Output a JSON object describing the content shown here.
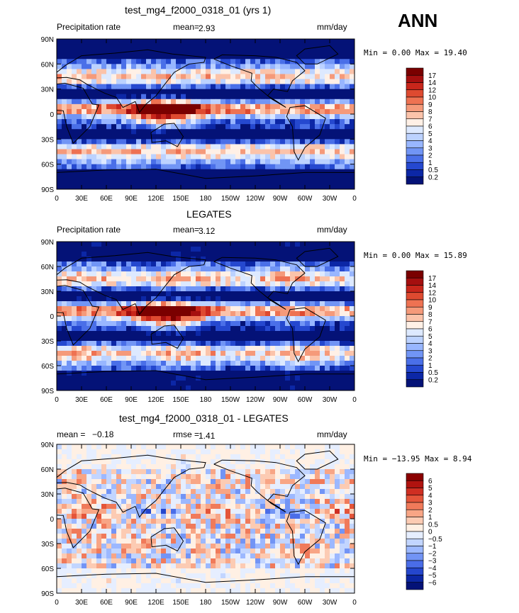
{
  "season": "ANN",
  "panels": [
    {
      "title": "test_mg4_f2000_0318_01 (yrs 1)",
      "left_label": "Precipitation rate",
      "stat_label": "mean=",
      "stat_value": "2.93",
      "stat2_label": "",
      "stat2_value": "",
      "units": "mm/day",
      "minmax": "Min =   0.00 Max =  19.40",
      "colorbar": {
        "labels": [
          "17",
          "14",
          "12",
          "10",
          "9",
          "8",
          "7",
          "6",
          "5",
          "4",
          "3",
          "2",
          "1",
          "0.5",
          "0.2"
        ],
        "colors": [
          "#7a0000",
          "#a50f0f",
          "#c8261b",
          "#de4a30",
          "#ee7252",
          "#f59a7a",
          "#fbc3aa",
          "#fff0e6",
          "#dde9ff",
          "#bcd2ff",
          "#98b6ff",
          "#7195f5",
          "#4a6fe8",
          "#2548cf",
          "#0c27a6",
          "#041277"
        ]
      }
    },
    {
      "title": "LEGATES",
      "left_label": "Precipitation rate",
      "stat_label": "mean=",
      "stat_value": "3.12",
      "stat2_label": "",
      "stat2_value": "",
      "units": "mm/day",
      "minmax": "Min =   0.00 Max =  15.89",
      "colorbar": {
        "labels": [
          "17",
          "14",
          "12",
          "10",
          "9",
          "8",
          "7",
          "6",
          "5",
          "4",
          "3",
          "2",
          "1",
          "0.5",
          "0.2"
        ],
        "colors": [
          "#7a0000",
          "#a50f0f",
          "#c8261b",
          "#de4a30",
          "#ee7252",
          "#f59a7a",
          "#fbc3aa",
          "#fff0e6",
          "#dde9ff",
          "#bcd2ff",
          "#98b6ff",
          "#7195f5",
          "#4a6fe8",
          "#2548cf",
          "#0c27a6",
          "#041277"
        ]
      }
    },
    {
      "title": "test_mg4_f2000_0318_01 - LEGATES",
      "left_label": "mean =",
      "stat_label": "−0.18",
      "stat_value": "",
      "stat2_label": "rmse =",
      "stat2_value": "1.41",
      "units": "mm/day",
      "minmax": "Min = −13.95 Max =   8.94",
      "colorbar": {
        "labels": [
          "6",
          "5",
          "4",
          "3",
          "2",
          "1",
          "0.5",
          "0",
          "−0.5",
          "−1",
          "−2",
          "−3",
          "−4",
          "−5",
          "−6"
        ],
        "colors": [
          "#8a0000",
          "#b0130f",
          "#cf2f22",
          "#e4553a",
          "#f07a5a",
          "#f8a585",
          "#fccbb3",
          "#fff0e4",
          "#e6eeff",
          "#c2d5ff",
          "#9cb8ff",
          "#7294f5",
          "#4a6de8",
          "#2546cc",
          "#0c26a3",
          "#041277"
        ]
      }
    }
  ],
  "chart_data": {
    "type": "heatmap",
    "x_ticks": [
      "0",
      "30E",
      "60E",
      "90E",
      "120E",
      "150E",
      "180",
      "150W",
      "120W",
      "90W",
      "60W",
      "30W",
      "0"
    ],
    "y_ticks": [
      "90N",
      "60N",
      "30N",
      "0",
      "30S",
      "60S",
      "90S"
    ],
    "xlim": [
      0,
      360
    ],
    "ylim": [
      -90,
      90
    ]
  }
}
